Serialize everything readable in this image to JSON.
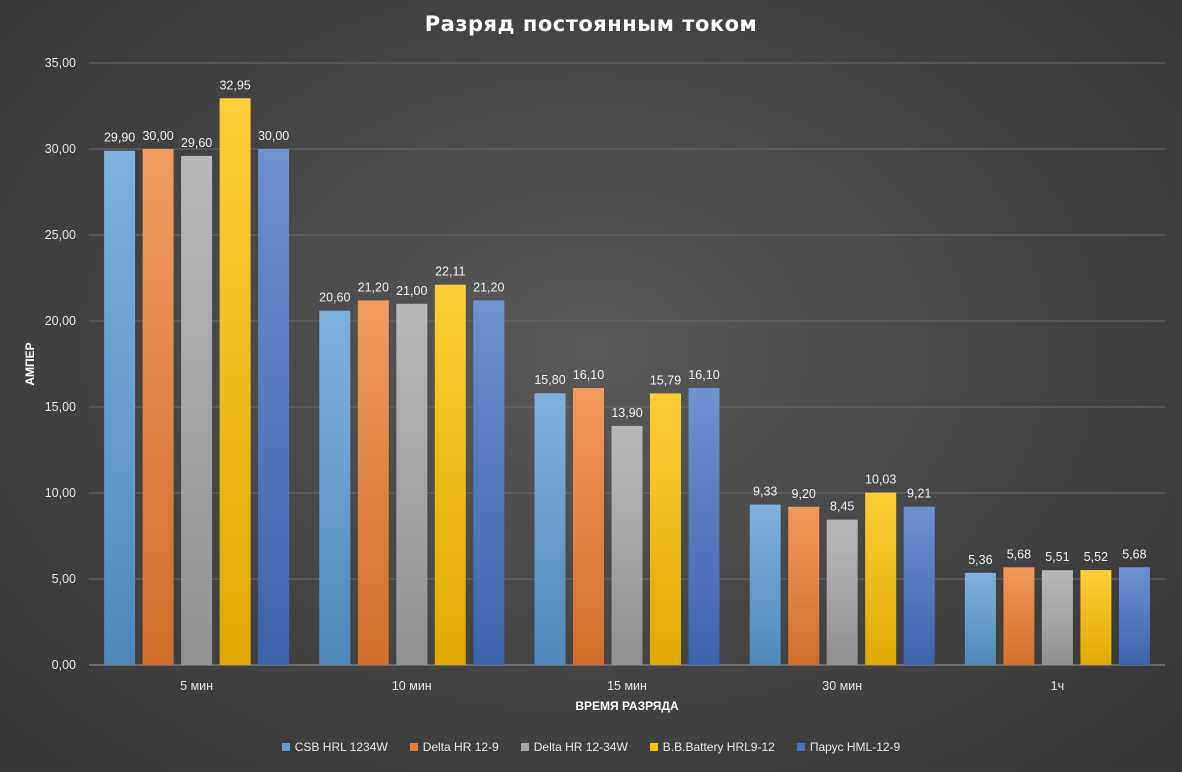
{
  "chart_data": {
    "type": "bar",
    "title": "Разряд постоянным током",
    "xlabel": "ВРЕМЯ РАЗРЯДА",
    "ylabel": "АМПЕР",
    "categories": [
      "5 мин",
      "10 мин",
      "15 мин",
      "30 мин",
      "1ч"
    ],
    "ylim": [
      0,
      35
    ],
    "yticks": [
      "0,00",
      "5,00",
      "10,00",
      "15,00",
      "20,00",
      "25,00",
      "30,00",
      "35,00"
    ],
    "grid": true,
    "legend_position": "bottom",
    "series": [
      {
        "name": "CSB HRL 1234W",
        "color": "#5b9bd5",
        "values": [
          29.9,
          20.6,
          15.8,
          9.33,
          5.36
        ],
        "labels": [
          "29,90",
          "20,60",
          "15,80",
          "9,33",
          "5,36"
        ]
      },
      {
        "name": "Delta HR 12-9",
        "color": "#ed7d31",
        "values": [
          30.0,
          21.2,
          16.1,
          9.2,
          5.68
        ],
        "labels": [
          "30,00",
          "21,20",
          "16,10",
          "9,20",
          "5,68"
        ]
      },
      {
        "name": "Delta HR 12-34W",
        "color": "#a5a5a5",
        "values": [
          29.6,
          21.0,
          13.9,
          8.45,
          5.51
        ],
        "labels": [
          "29,60",
          "21,00",
          "13,90",
          "8,45",
          "5,51"
        ]
      },
      {
        "name": "B.B.Battery HRL9-12",
        "color": "#ffc000",
        "values": [
          32.95,
          22.11,
          15.79,
          10.03,
          5.52
        ],
        "labels": [
          "32,95",
          "22,11",
          "15,79",
          "10,03",
          "5,52"
        ]
      },
      {
        "name": "Парус HML-12-9",
        "color": "#4472c4",
        "values": [
          30.0,
          21.2,
          16.1,
          9.21,
          5.68
        ],
        "labels": [
          "30,00",
          "21,20",
          "16,10",
          "9,21",
          "5,68"
        ]
      }
    ]
  }
}
